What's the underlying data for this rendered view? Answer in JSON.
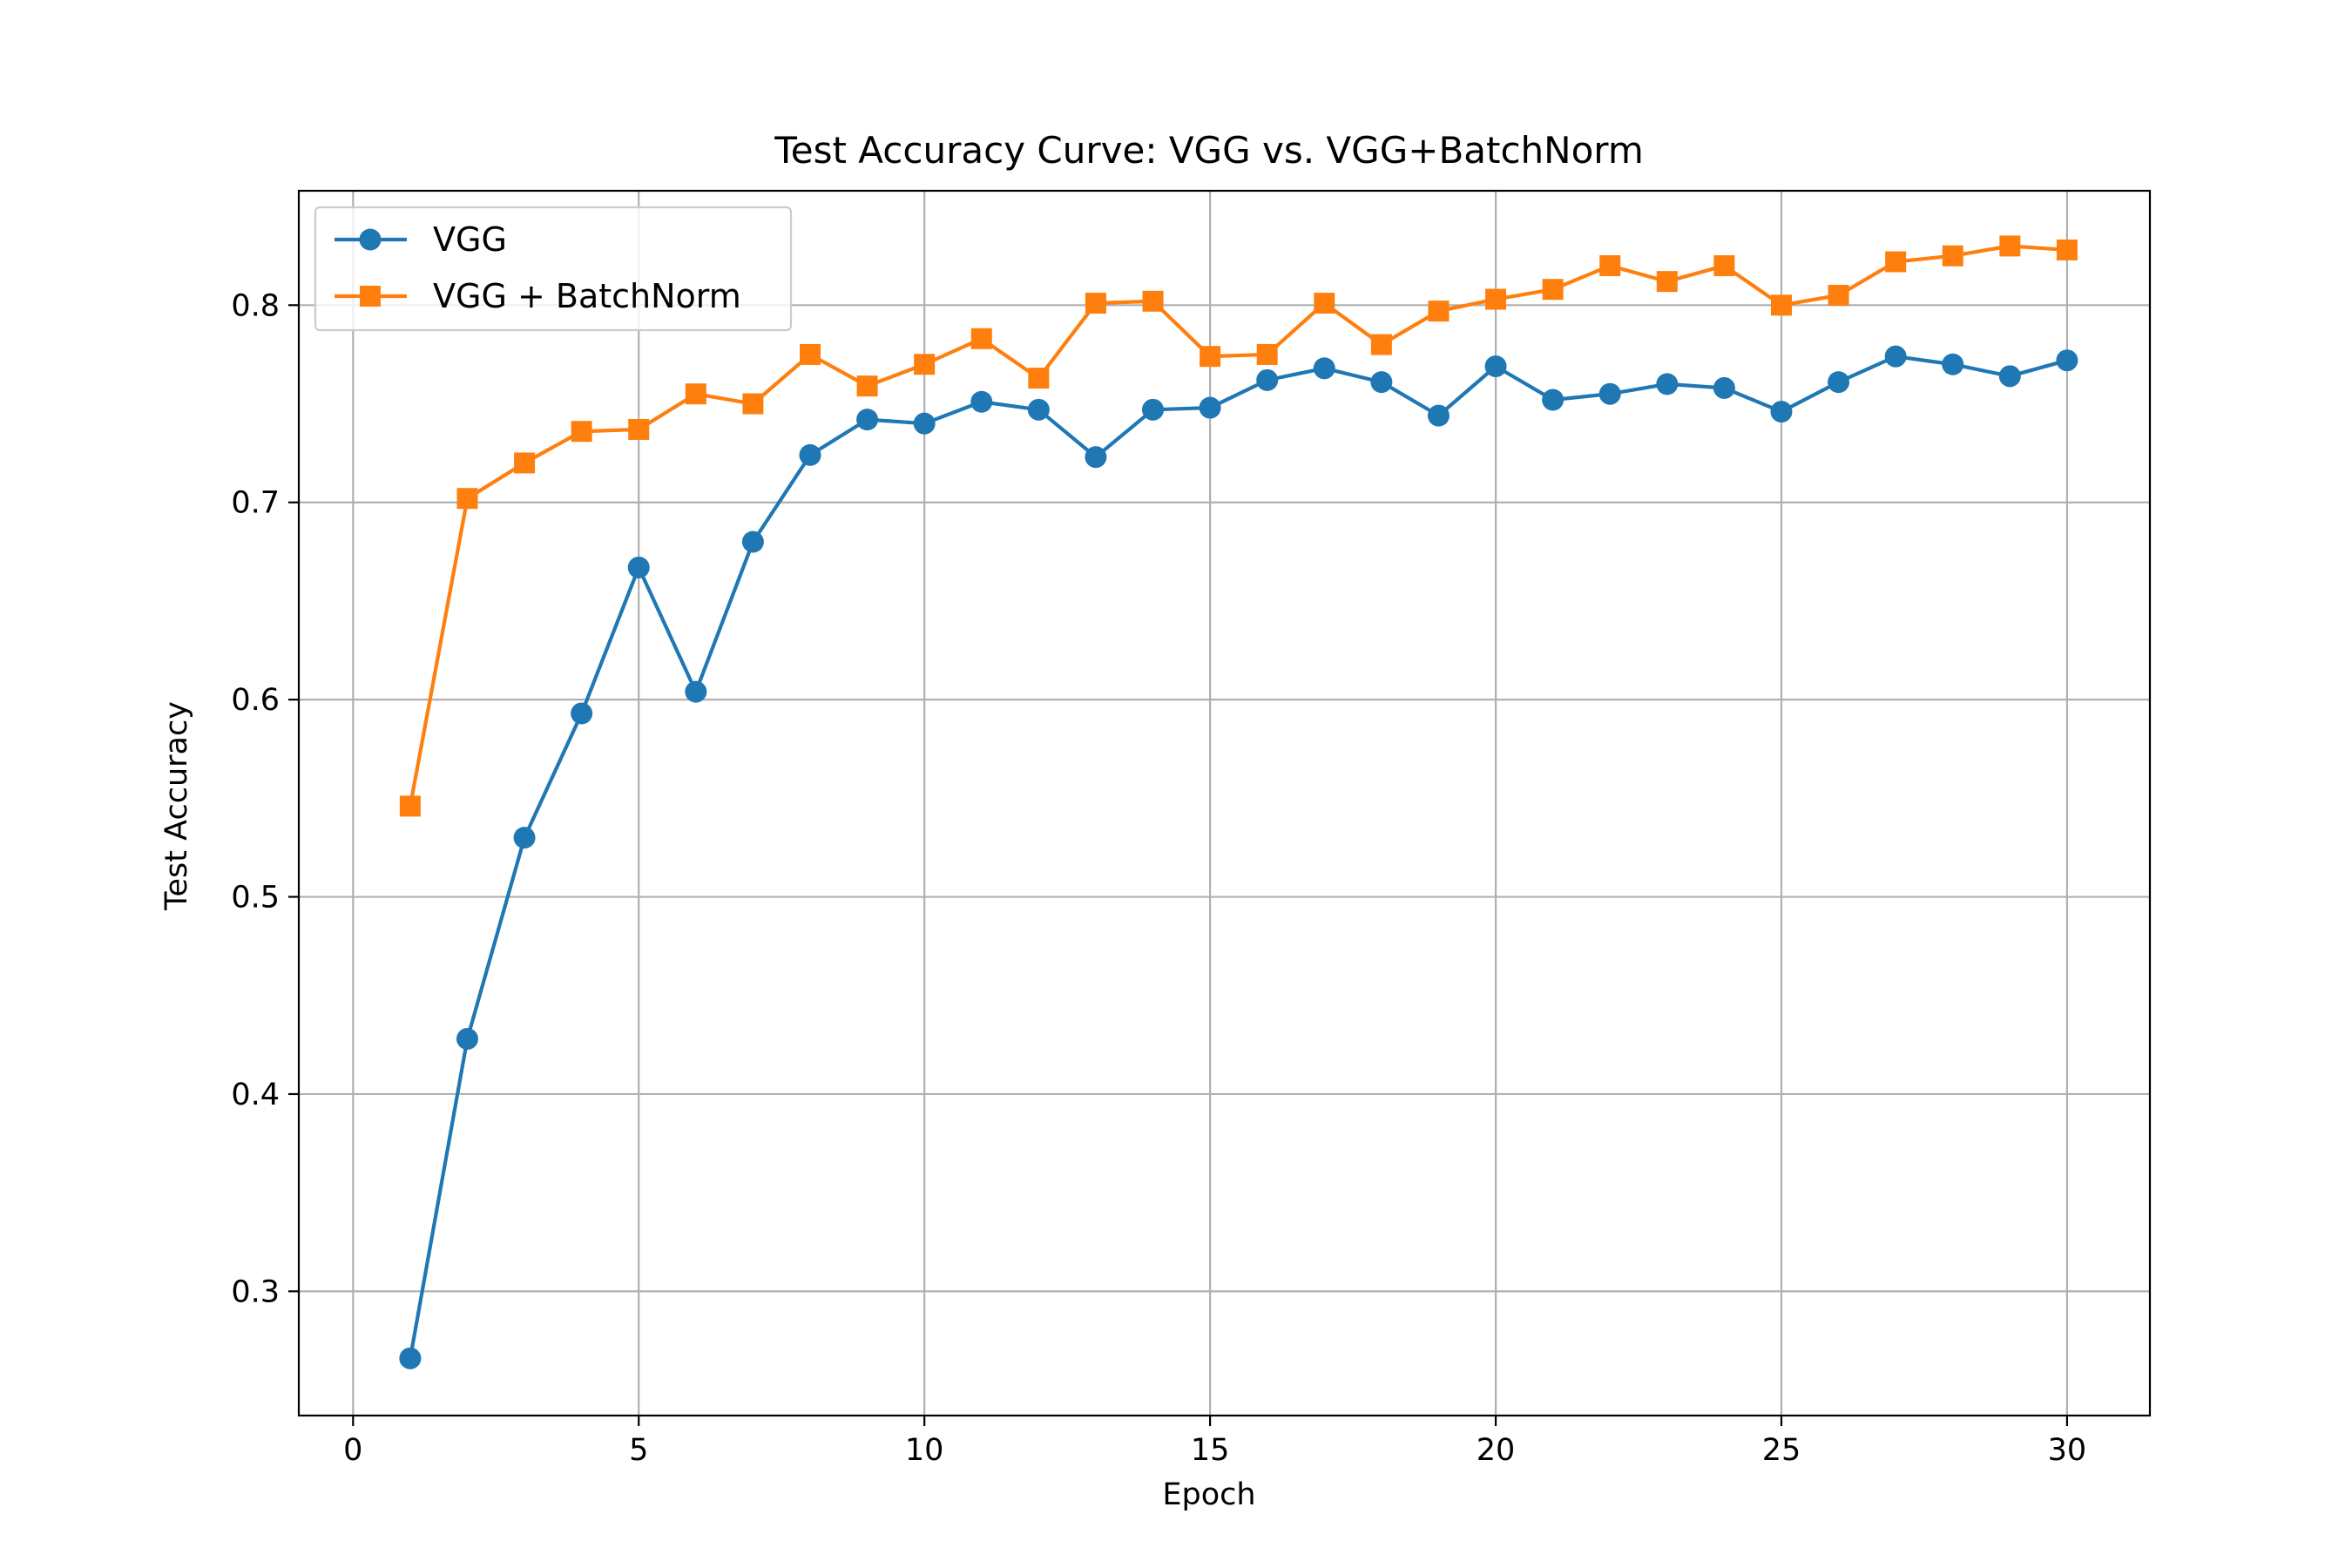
{
  "chart_data": {
    "type": "line",
    "title": "Test Accuracy Curve: VGG vs. VGG+BatchNorm",
    "xlabel": "Epoch",
    "ylabel": "Test Accuracy",
    "xlim": [
      -0.95,
      31.45
    ],
    "ylim": [
      0.237,
      0.858
    ],
    "x_ticks": [
      0,
      5,
      10,
      15,
      20,
      25,
      30
    ],
    "y_ticks": [
      0.3,
      0.4,
      0.5,
      0.6,
      0.7,
      0.8
    ],
    "x_tick_labels": [
      "0",
      "5",
      "10",
      "15",
      "20",
      "25",
      "30"
    ],
    "y_tick_labels": [
      "0.3",
      "0.4",
      "0.5",
      "0.6",
      "0.7",
      "0.8"
    ],
    "grid": true,
    "legend_position": "top-left",
    "x": [
      1,
      2,
      3,
      4,
      5,
      6,
      7,
      8,
      9,
      10,
      11,
      12,
      13,
      14,
      15,
      16,
      17,
      18,
      19,
      20,
      21,
      22,
      23,
      24,
      25,
      26,
      27,
      28,
      29,
      30
    ],
    "series": [
      {
        "name": "VGG",
        "color": "#1f77b4",
        "marker": "circle",
        "values": [
          0.266,
          0.428,
          0.53,
          0.593,
          0.667,
          0.604,
          0.68,
          0.724,
          0.742,
          0.74,
          0.751,
          0.747,
          0.723,
          0.747,
          0.748,
          0.762,
          0.768,
          0.761,
          0.744,
          0.769,
          0.752,
          0.755,
          0.76,
          0.758,
          0.746,
          0.761,
          0.774,
          0.77,
          0.764,
          0.772
        ]
      },
      {
        "name": "VGG + BatchNorm",
        "color": "#ff7f0e",
        "marker": "square",
        "values": [
          0.546,
          0.702,
          0.72,
          0.736,
          0.737,
          0.755,
          0.75,
          0.775,
          0.759,
          0.77,
          0.783,
          0.763,
          0.801,
          0.802,
          0.774,
          0.775,
          0.801,
          0.78,
          0.797,
          0.803,
          0.808,
          0.82,
          0.812,
          0.82,
          0.8,
          0.805,
          0.822,
          0.825,
          0.83,
          0.828
        ]
      }
    ]
  }
}
